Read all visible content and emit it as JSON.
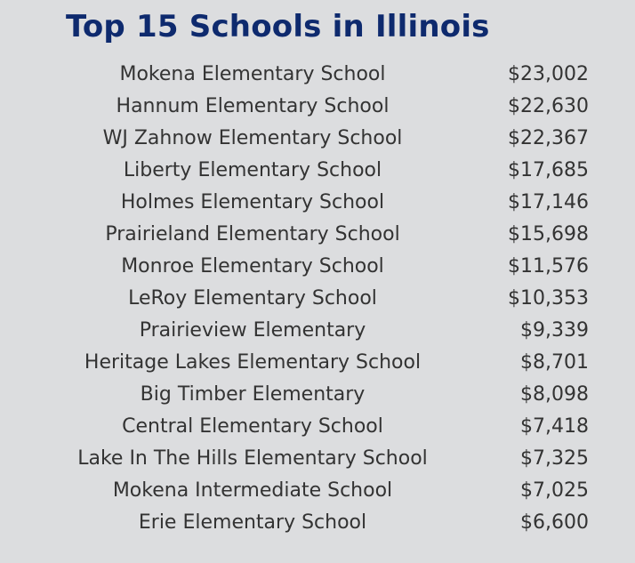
{
  "header": {
    "title": "Top 15 Schools in Illinois"
  },
  "table": {
    "rows": [
      [
        "Mokena Elementary School",
        "$23,002"
      ],
      [
        "Hannum Elementary School",
        "$22,630"
      ],
      [
        "WJ Zahnow Elementary School",
        "$22,367"
      ],
      [
        "Liberty Elementary School",
        "$17,685"
      ],
      [
        "Holmes Elementary School",
        "$17,146"
      ],
      [
        "Prairieland Elementary School",
        "$15,698"
      ],
      [
        "Monroe Elementary School",
        "$11,576"
      ],
      [
        "LeRoy Elementary School",
        "$10,353"
      ],
      [
        "Prairieview Elementary",
        "$9,339"
      ],
      [
        "Heritage Lakes Elementary School",
        "$8,701"
      ],
      [
        "Big Timber Elementary",
        "$8,098"
      ],
      [
        "Central Elementary School",
        "$7,418"
      ],
      [
        "Lake In The Hills Elementary School",
        "$7,325"
      ],
      [
        "Mokena Intermediate School",
        "$7,025"
      ],
      [
        "Erie Elementary School",
        "$6,600"
      ]
    ]
  }
}
